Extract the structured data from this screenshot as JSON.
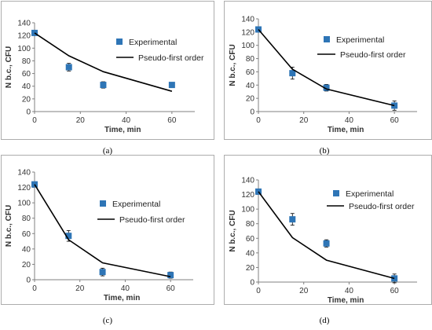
{
  "colors": {
    "experimental": "#2E75B6",
    "model": "#000000",
    "axis": "#808080",
    "frame": "#999999"
  },
  "chart_data": [
    {
      "type": "scatter",
      "panel_label": "(a)",
      "xlabel": "Time, min",
      "ylabel": "N b.c., CFU",
      "xlim": [
        0,
        70
      ],
      "ylim": [
        0,
        140
      ],
      "xticks": [
        0,
        20,
        40,
        60
      ],
      "yticks": [
        0,
        20,
        40,
        60,
        80,
        100,
        120,
        140
      ],
      "legend_position": "right",
      "series": [
        {
          "name": "Experimental",
          "kind": "points",
          "x": [
            0,
            15,
            30,
            60
          ],
          "y": [
            124,
            70,
            42,
            42
          ],
          "err": [
            3,
            6,
            5,
            4
          ]
        },
        {
          "name": "Pseudo-first order",
          "kind": "line",
          "x": [
            0,
            15,
            30,
            60
          ],
          "y": [
            124,
            88,
            63,
            32
          ]
        }
      ]
    },
    {
      "type": "scatter",
      "panel_label": "(b)",
      "xlabel": "Time, min",
      "ylabel": "N b.c., CFU",
      "xlim": [
        0,
        70
      ],
      "ylim": [
        0,
        140
      ],
      "xticks": [
        0,
        20,
        40,
        60
      ],
      "yticks": [
        0,
        20,
        40,
        60,
        80,
        100,
        120,
        140
      ],
      "legend_position": "right",
      "series": [
        {
          "name": "Experimental",
          "kind": "points",
          "x": [
            0,
            15,
            30,
            60
          ],
          "y": [
            124,
            58,
            36,
            9
          ],
          "err": [
            3,
            9,
            5,
            7
          ]
        },
        {
          "name": "Pseudo-first order",
          "kind": "line",
          "x": [
            0,
            15,
            30,
            60
          ],
          "y": [
            124,
            64,
            34,
            9
          ]
        }
      ]
    },
    {
      "type": "scatter",
      "panel_label": "(c)",
      "xlabel": "Time, min",
      "ylabel": "N b.c., CFU",
      "xlim": [
        0,
        70
      ],
      "ylim": [
        0,
        140
      ],
      "xticks": [
        0,
        20,
        40,
        60
      ],
      "yticks": [
        0,
        20,
        40,
        60,
        80,
        100,
        120,
        140
      ],
      "legend_position": "right",
      "series": [
        {
          "name": "Experimental",
          "kind": "points",
          "x": [
            0,
            15,
            30,
            60
          ],
          "y": [
            124,
            57,
            10,
            6
          ],
          "err": [
            3,
            7,
            5,
            4
          ]
        },
        {
          "name": "Pseudo-first order",
          "kind": "line",
          "x": [
            0,
            15,
            30,
            60
          ],
          "y": [
            124,
            52,
            22,
            4
          ]
        }
      ]
    },
    {
      "type": "scatter",
      "panel_label": "(d)",
      "xlabel": "Time, min",
      "ylabel": "N b.c., CFU",
      "xlim": [
        0,
        70
      ],
      "ylim": [
        0,
        140
      ],
      "xticks": [
        0,
        20,
        40,
        60
      ],
      "yticks": [
        0,
        20,
        40,
        60,
        80,
        100,
        120,
        140
      ],
      "legend_position": "right",
      "series": [
        {
          "name": "Experimental",
          "kind": "points",
          "x": [
            0,
            15,
            30,
            60
          ],
          "y": [
            124,
            86,
            53,
            5
          ],
          "err": [
            3,
            8,
            5,
            6
          ]
        },
        {
          "name": "Pseudo-first order",
          "kind": "line",
          "x": [
            0,
            15,
            30,
            60
          ],
          "y": [
            124,
            61,
            30,
            5
          ]
        }
      ]
    }
  ]
}
